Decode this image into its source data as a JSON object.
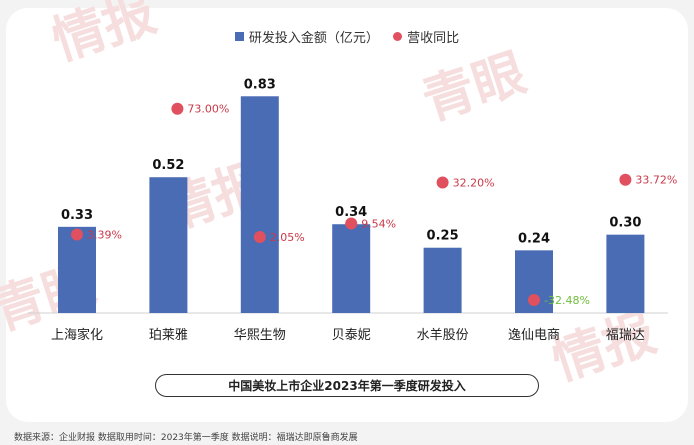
{
  "legend": {
    "bar_label": "研发投入金额（亿元）",
    "dot_label": "营收同比"
  },
  "title": "中国美妆上市企业2023年第一季度研发投入",
  "footer": "数据来源：企业财报   数据取用时间：2023年第一季度   数据说明：福瑞达即原鲁商发展",
  "watermark": "青眼情报",
  "colors": {
    "bar": "#4a6cb5",
    "dot": "#e0505e",
    "positive_text": "#c93a4a",
    "negative_text": "#6fbf3c"
  },
  "chart_data": {
    "type": "bar",
    "categories": [
      "上海家化",
      "珀莱雅",
      "华熙生物",
      "贝泰妮",
      "水羊股份",
      "逸仙电商",
      "福瑞达"
    ],
    "series": [
      {
        "name": "研发投入金额（亿元）",
        "values": [
          0.33,
          0.52,
          0.83,
          0.34,
          0.25,
          0.24,
          0.3
        ]
      },
      {
        "name": "营收同比",
        "values": [
          3.39,
          73.0,
          2.05,
          9.54,
          32.2,
          -32.48,
          33.72
        ]
      }
    ],
    "bar_labels": [
      "0.33",
      "0.52",
      "0.83",
      "0.34",
      "0.25",
      "0.24",
      "0.30"
    ],
    "dot_labels": [
      "3.39%",
      "73.00%",
      "2.05%",
      "9.54%",
      "32.20%",
      "-32.48%",
      "33.72%"
    ],
    "ylim_bar": [
      0,
      0.9
    ],
    "ylim_dot": [
      -40,
      90
    ],
    "grid": false,
    "legend_position": "top-center"
  }
}
